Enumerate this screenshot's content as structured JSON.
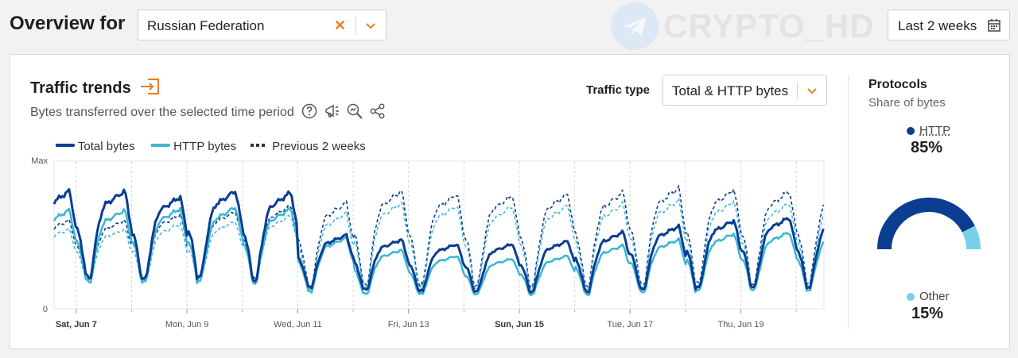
{
  "header": {
    "title": "Overview for",
    "country_select": {
      "value": "Russian Federation"
    },
    "watermark": "CRYPTO_HD",
    "date_range": {
      "value": "Last 2 weeks"
    }
  },
  "traffic": {
    "title": "Traffic trends",
    "subtitle": "Bytes transferred over the selected time period",
    "type_label": "Traffic type",
    "type_value": "Total & HTTP bytes",
    "legend": [
      "Total bytes",
      "HTTP bytes",
      "Previous 2 weeks"
    ]
  },
  "colors": {
    "total": "#0b3d91",
    "http": "#3bb5d6",
    "accent": "#e67e22",
    "other": "#78d0e8"
  },
  "chart_data": {
    "type": "line",
    "y_tick_labels": [
      "Max",
      "0"
    ],
    "x_tick_labels": [
      "Sat, Jun 7",
      "Mon, Jun 9",
      "Wed, Jun 11",
      "Fri, Jun 13",
      "Sun, Jun 15",
      "Tue, Jun 17",
      "Thu, Jun 19"
    ],
    "x_domain_days": [
      6.6,
      20.5
    ],
    "ylim": [
      0,
      1
    ],
    "daily": {
      "days": [
        "Jun 7",
        "Jun 8",
        "Jun 9",
        "Jun 10",
        "Jun 11",
        "Jun 12",
        "Jun 13",
        "Jun 14",
        "Jun 15",
        "Jun 16",
        "Jun 17",
        "Jun 18",
        "Jun 19",
        "Jun 20"
      ],
      "series": [
        {
          "name": "Total bytes",
          "peaks": [
            0.8,
            0.76,
            0.8,
            0.79,
            0.5,
            0.47,
            0.44,
            0.44,
            0.46,
            0.52,
            0.56,
            0.6,
            0.62,
            0.62
          ],
          "troughs": [
            0.21,
            0.2,
            0.22,
            0.2,
            0.15,
            0.13,
            0.12,
            0.12,
            0.12,
            0.12,
            0.13,
            0.14,
            0.15,
            0.15
          ]
        },
        {
          "name": "HTTP bytes",
          "peaks": [
            0.67,
            0.68,
            0.69,
            0.68,
            0.48,
            0.4,
            0.36,
            0.34,
            0.36,
            0.43,
            0.47,
            0.51,
            0.52,
            0.52
          ],
          "troughs": [
            0.18,
            0.18,
            0.19,
            0.18,
            0.12,
            0.1,
            0.1,
            0.1,
            0.1,
            0.1,
            0.11,
            0.12,
            0.13,
            0.13
          ]
        },
        {
          "name": "Previous 2 weeks",
          "peaks": [
            0.6,
            0.64,
            0.66,
            0.7,
            0.72,
            0.8,
            0.78,
            0.77,
            0.78,
            0.79,
            0.82,
            0.81,
            0.8,
            0.81
          ],
          "troughs": [
            0.2,
            0.19,
            0.21,
            0.22,
            0.15,
            0.16,
            0.16,
            0.16,
            0.16,
            0.16,
            0.16,
            0.17,
            0.17,
            0.18
          ]
        }
      ]
    }
  },
  "protocols": {
    "title": "Protocols",
    "subtitle": "Share of bytes",
    "items": [
      {
        "label": "HTTP",
        "value": "85%",
        "share": 0.85,
        "color": "#0b3d91"
      },
      {
        "label": "Other",
        "value": "15%",
        "share": 0.15,
        "color": "#78d0e8"
      }
    ]
  }
}
